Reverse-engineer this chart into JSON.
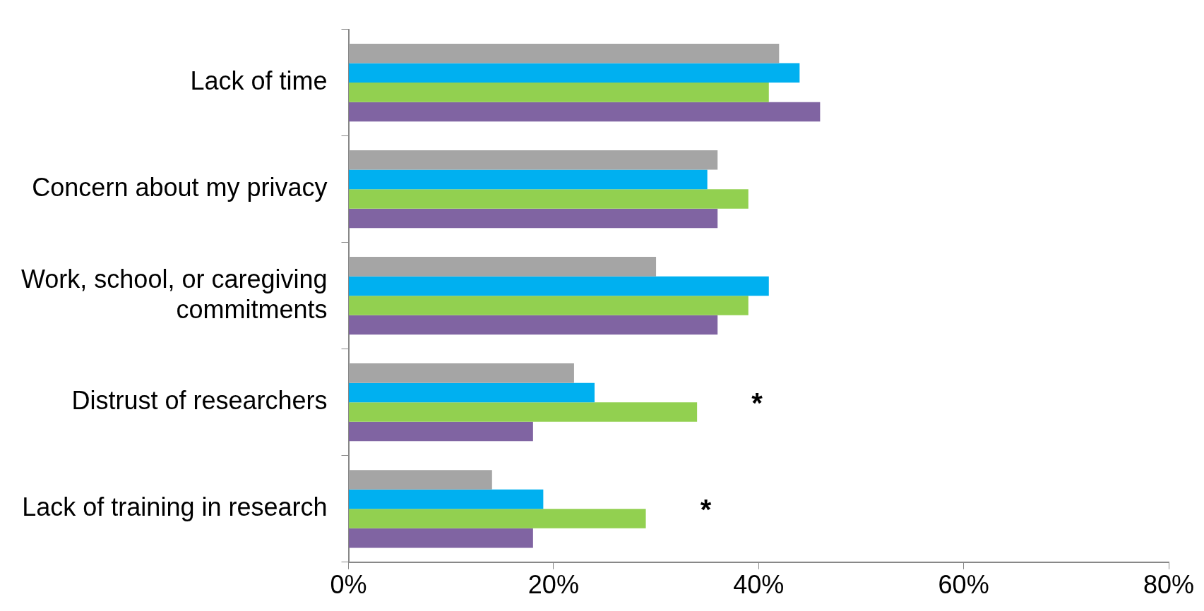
{
  "chart_data": {
    "type": "bar",
    "orientation": "horizontal",
    "categories": [
      "Lack of time",
      "Concern about my privacy",
      "Work, school, or caregiving commitments",
      "Distrust of researchers",
      "Lack of training in research"
    ],
    "series": [
      {
        "color": "#a5a5a5",
        "values": [
          42,
          36,
          30,
          22,
          14
        ]
      },
      {
        "color": "#00b0f0",
        "values": [
          44,
          35,
          41,
          24,
          19
        ]
      },
      {
        "color": "#92d050",
        "values": [
          41,
          39,
          39,
          34,
          29
        ]
      },
      {
        "color": "#8064a2",
        "values": [
          46,
          36,
          36,
          18,
          18
        ]
      }
    ],
    "xlim": [
      0,
      80
    ],
    "xticks": [
      {
        "value": 0,
        "label": "0%"
      },
      {
        "value": 20,
        "label": "20%"
      },
      {
        "value": 40,
        "label": "40%"
      },
      {
        "value": 60,
        "label": "60%"
      },
      {
        "value": 80,
        "label": "80%"
      }
    ],
    "annotations": [
      "*",
      "*"
    ],
    "grid": false,
    "legend": false
  }
}
